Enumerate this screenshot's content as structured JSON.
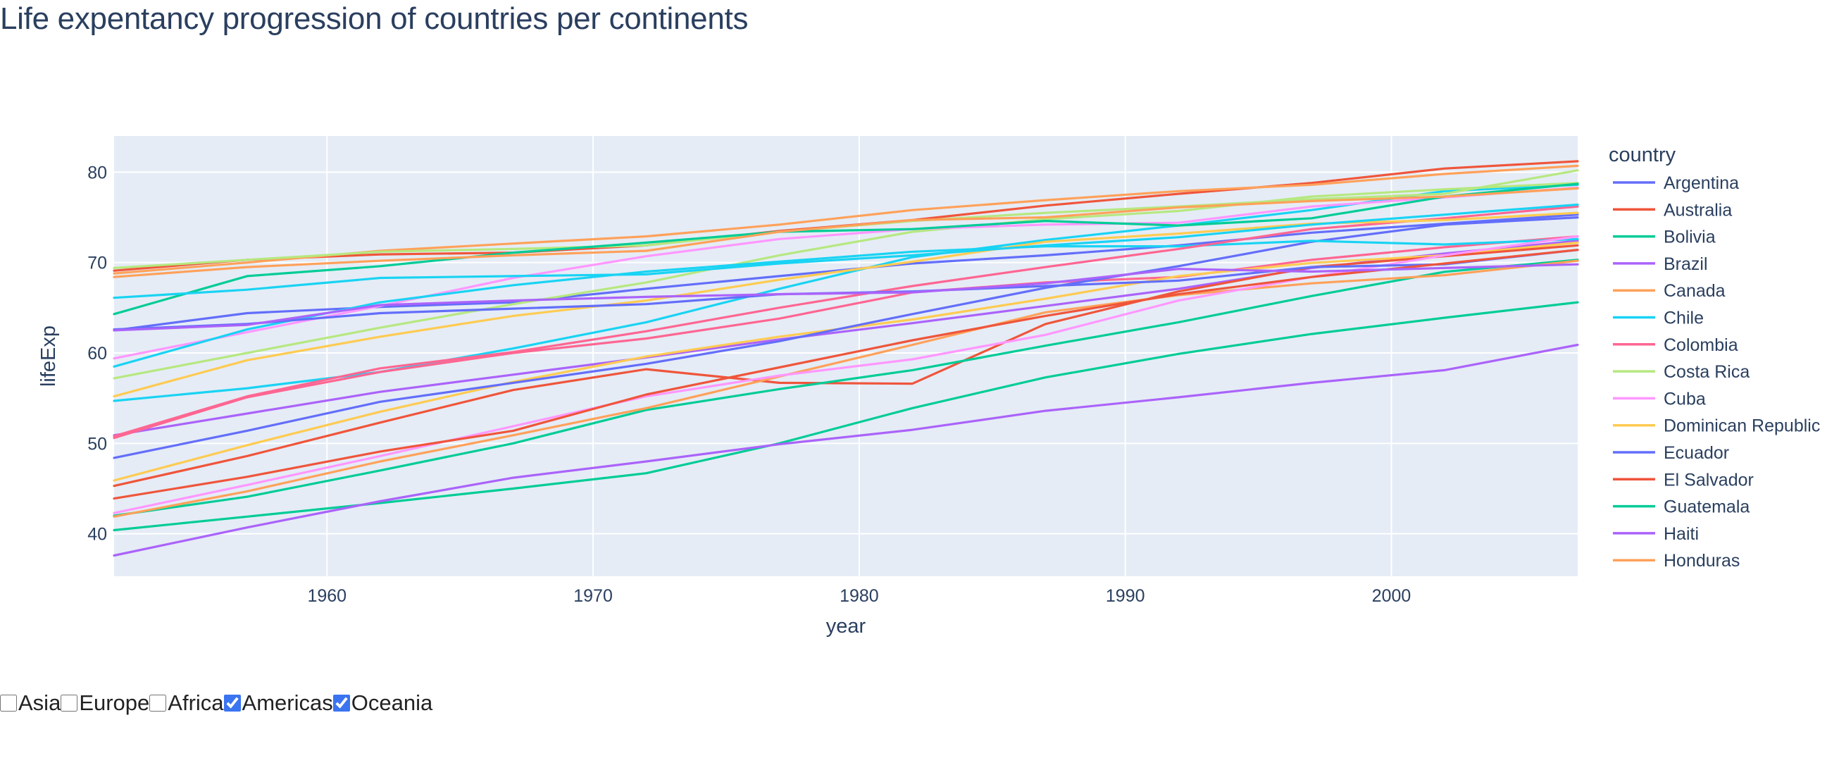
{
  "page": {
    "title": "Life expentancy progression of countries per continents"
  },
  "filters": [
    {
      "label": "Asia",
      "checked": false
    },
    {
      "label": "Europe",
      "checked": false
    },
    {
      "label": "Africa",
      "checked": false
    },
    {
      "label": "Americas",
      "checked": true
    },
    {
      "label": "Oceania",
      "checked": true
    }
  ],
  "chart_data": {
    "type": "line",
    "title": "",
    "xlabel": "year",
    "ylabel": "lifeExp",
    "legend_title": "country",
    "legend_position": "right",
    "xlim": [
      1952,
      2007
    ],
    "ylim": [
      35.3,
      84.0
    ],
    "xticks": [
      1960,
      1970,
      1980,
      1990,
      2000
    ],
    "yticks": [
      40,
      50,
      60,
      70,
      80
    ],
    "grid": true,
    "background": "#e5ecf6",
    "x": [
      1952,
      1957,
      1962,
      1967,
      1972,
      1977,
      1982,
      1987,
      1992,
      1997,
      2002,
      2007
    ],
    "series": [
      {
        "name": "Argentina",
        "color": "#636efa",
        "values": [
          62.5,
          64.4,
          65.1,
          65.6,
          67.1,
          68.5,
          69.9,
          70.8,
          71.9,
          73.3,
          74.3,
          75.3
        ]
      },
      {
        "name": "Australia",
        "color": "#EF553B",
        "values": [
          69.1,
          70.3,
          70.9,
          71.1,
          71.9,
          73.5,
          74.7,
          76.3,
          77.6,
          78.8,
          80.4,
          81.2
        ]
      },
      {
        "name": "Bolivia",
        "color": "#00cc96",
        "values": [
          40.4,
          41.9,
          43.4,
          45.0,
          46.7,
          50.0,
          53.9,
          57.3,
          59.9,
          62.1,
          63.9,
          65.6
        ]
      },
      {
        "name": "Brazil",
        "color": "#ab63fa",
        "values": [
          50.9,
          53.3,
          55.7,
          57.6,
          59.5,
          61.5,
          63.3,
          65.2,
          67.1,
          69.4,
          71.0,
          72.4
        ]
      },
      {
        "name": "Canada",
        "color": "#FFA15A",
        "values": [
          68.8,
          70.0,
          71.3,
          72.1,
          72.9,
          74.2,
          75.8,
          76.9,
          77.9,
          78.6,
          79.8,
          80.7
        ]
      },
      {
        "name": "Chile",
        "color": "#19d3f3",
        "values": [
          54.7,
          56.1,
          57.9,
          60.5,
          63.4,
          67.1,
          70.6,
          72.5,
          74.1,
          75.8,
          77.9,
          78.6
        ]
      },
      {
        "name": "Colombia",
        "color": "#FF6692",
        "values": [
          50.6,
          55.1,
          57.9,
          60.0,
          61.6,
          63.8,
          66.7,
          67.8,
          68.4,
          70.3,
          71.7,
          72.9
        ]
      },
      {
        "name": "Costa Rica",
        "color": "#B6E880",
        "values": [
          57.2,
          60.0,
          62.8,
          65.4,
          67.8,
          70.8,
          73.4,
          74.8,
          75.7,
          77.3,
          78.1,
          78.8
        ]
      },
      {
        "name": "Cuba",
        "color": "#FF97FF",
        "values": [
          59.4,
          62.3,
          65.2,
          68.3,
          70.7,
          72.6,
          73.7,
          74.2,
          74.4,
          76.2,
          77.2,
          78.3
        ]
      },
      {
        "name": "Dominican Republic",
        "color": "#FECB52",
        "values": [
          45.9,
          49.8,
          53.5,
          56.8,
          59.6,
          61.8,
          63.7,
          66.0,
          68.5,
          69.96,
          70.8,
          72.2
        ]
      },
      {
        "name": "Ecuador",
        "color": "#636efa",
        "values": [
          48.4,
          51.4,
          54.6,
          56.7,
          58.8,
          61.3,
          64.3,
          67.2,
          69.6,
          72.3,
          74.2,
          74.99
        ]
      },
      {
        "name": "El Salvador",
        "color": "#EF553B",
        "values": [
          45.3,
          48.6,
          52.3,
          55.9,
          58.2,
          56.7,
          56.6,
          63.2,
          66.8,
          69.5,
          70.7,
          71.9
        ]
      },
      {
        "name": "Guatemala",
        "color": "#00cc96",
        "values": [
          42.0,
          44.1,
          47.0,
          50.0,
          53.7,
          56.0,
          58.1,
          60.8,
          63.4,
          66.3,
          68.98,
          70.3
        ]
      },
      {
        "name": "Haiti",
        "color": "#ab63fa",
        "values": [
          37.6,
          40.7,
          43.6,
          46.2,
          48.0,
          49.9,
          51.5,
          53.6,
          55.1,
          56.7,
          58.1,
          60.9
        ]
      },
      {
        "name": "Honduras",
        "color": "#FFA15A",
        "values": [
          41.9,
          44.7,
          48.0,
          50.9,
          53.9,
          57.4,
          60.9,
          64.5,
          66.4,
          67.7,
          68.6,
          70.2
        ]
      },
      {
        "color": "#19d3f3",
        "values": [
          58.5,
          62.6,
          65.6,
          67.5,
          69.0,
          70.1,
          71.2,
          71.8,
          71.8,
          72.4,
          72.0,
          72.6
        ]
      },
      {
        "color": "#FF6692",
        "values": [
          50.8,
          55.2,
          58.3,
          60.1,
          62.4,
          65.0,
          67.4,
          69.5,
          71.5,
          73.7,
          74.9,
          76.2
        ]
      },
      {
        "color": "#B6E880",
        "values": [
          69.4,
          70.3,
          71.2,
          71.5,
          71.9,
          73.4,
          74.6,
          75.5,
          76.2,
          77.0,
          77.6,
          80.2
        ]
      },
      {
        "color": "#FF97FF",
        "values": [
          42.3,
          45.4,
          48.6,
          51.9,
          55.2,
          57.5,
          59.3,
          62.0,
          65.8,
          68.4,
          70.8,
          72.9
        ]
      },
      {
        "color": "#FECB52",
        "values": [
          55.2,
          59.2,
          61.8,
          64.1,
          65.8,
          68.1,
          70.1,
          72.3,
          73.2,
          74.3,
          74.7,
          75.5
        ]
      },
      {
        "color": "#636efa",
        "values": [
          62.6,
          63.2,
          64.4,
          64.9,
          65.4,
          66.5,
          66.8,
          67.4,
          68.0,
          69.5,
          69.8,
          71.4
        ]
      },
      {
        "color": "#EF553B",
        "values": [
          43.9,
          46.3,
          49.1,
          51.4,
          55.4,
          58.4,
          61.4,
          64.1,
          66.5,
          68.4,
          69.9,
          71.4
        ]
      },
      {
        "color": "#00cc96",
        "values": [
          64.3,
          68.5,
          69.6,
          71.1,
          72.2,
          73.4,
          73.7,
          74.6,
          74.1,
          74.9,
          77.3,
          78.7
        ]
      },
      {
        "color": "#ab63fa",
        "values": [
          62.5,
          63.1,
          65.3,
          65.8,
          66.2,
          66.5,
          66.7,
          67.7,
          69.3,
          69.0,
          69.4,
          69.8
        ]
      },
      {
        "color": "#FFA15A",
        "values": [
          68.4,
          69.5,
          70.2,
          70.8,
          71.3,
          73.4,
          74.7,
          75.0,
          76.1,
          76.8,
          77.3,
          78.2
        ]
      },
      {
        "color": "#19d3f3",
        "values": [
          66.1,
          67.0,
          68.3,
          68.5,
          68.7,
          69.9,
          70.8,
          71.9,
          72.8,
          74.2,
          75.3,
          76.4
        ]
      }
    ]
  }
}
